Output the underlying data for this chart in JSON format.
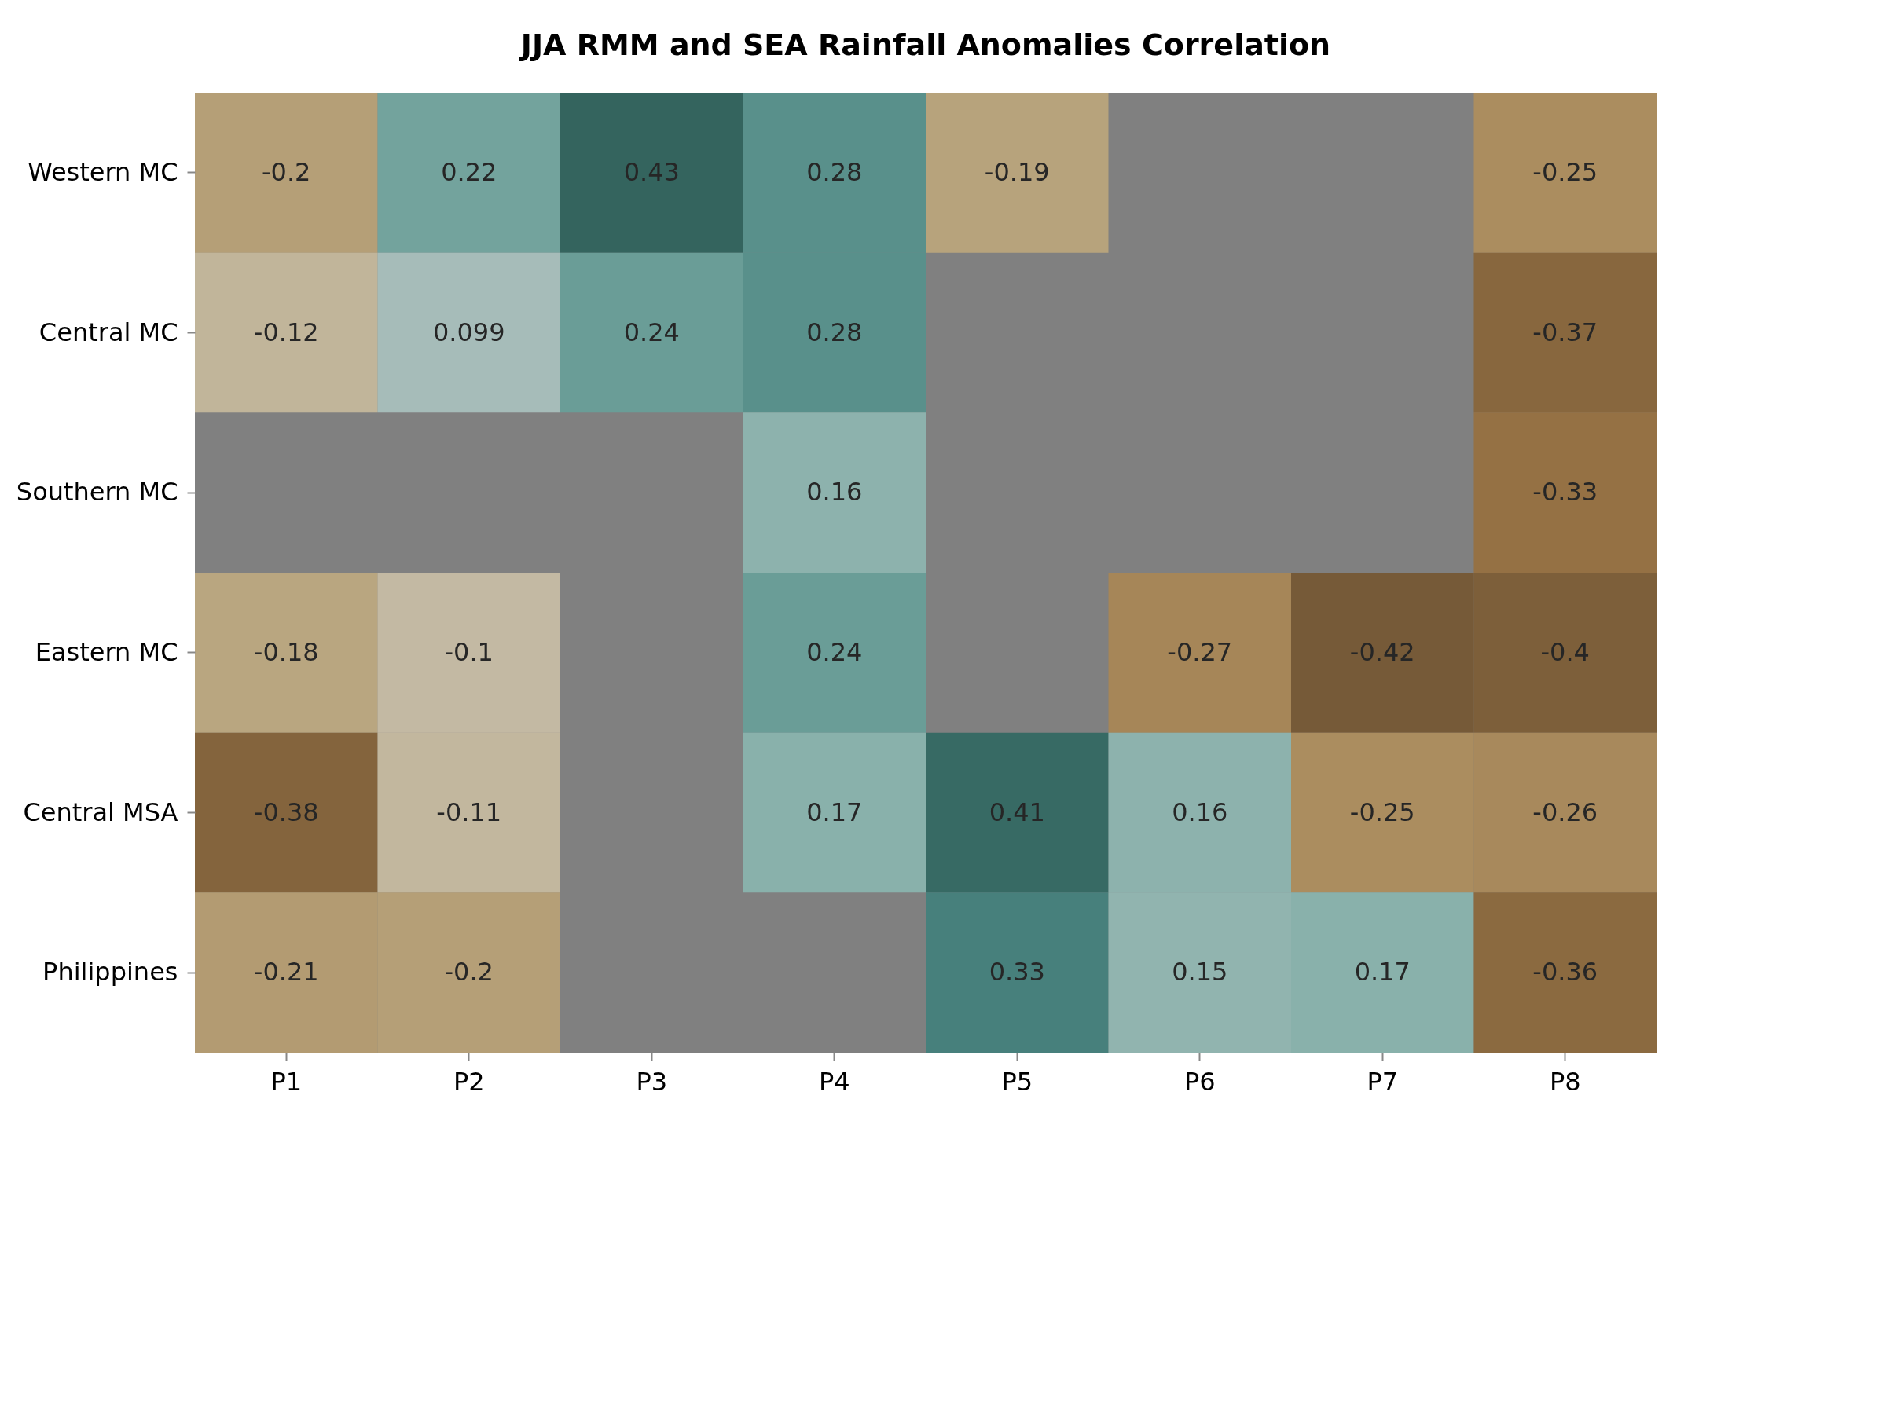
{
  "chart_data": {
    "type": "heatmap",
    "title": "JJA RMM and SEA Rainfall Anomalies Correlation",
    "categories": [
      "P1",
      "P2",
      "P3",
      "P4",
      "P5",
      "P6",
      "P7",
      "P8"
    ],
    "y_categories": [
      "Western MC",
      "Central MC",
      "Southern MC",
      "Eastern MC",
      "Central MSA",
      "Philippines"
    ],
    "cells": [
      [
        -0.2,
        0.22,
        0.43,
        0.28,
        -0.19,
        null,
        null,
        -0.25
      ],
      [
        -0.12,
        0.099,
        0.24,
        0.28,
        null,
        null,
        null,
        -0.37
      ],
      [
        null,
        null,
        null,
        0.16,
        null,
        null,
        null,
        -0.33
      ],
      [
        -0.18,
        -0.1,
        null,
        0.24,
        null,
        -0.27,
        -0.42,
        -0.4
      ],
      [
        -0.38,
        -0.11,
        null,
        0.17,
        0.41,
        0.16,
        -0.25,
        -0.26
      ],
      [
        -0.21,
        -0.2,
        null,
        null,
        0.33,
        0.15,
        0.17,
        -0.36
      ]
    ],
    "data_labels": true
  }
}
